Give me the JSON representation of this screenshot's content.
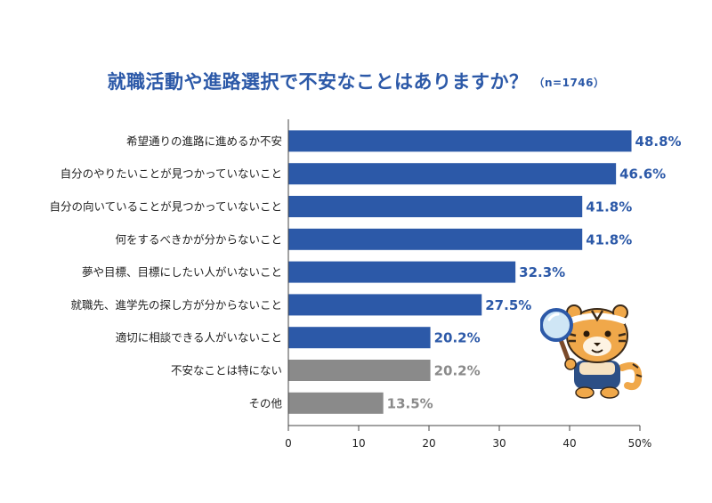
{
  "chart_data": {
    "type": "bar",
    "orientation": "horizontal",
    "title": "就職活動や進路選択で不安なことはありますか？",
    "subtitle": "（n=1746）",
    "categories": [
      "希望通りの進路に進めるか不安",
      "自分のやりたいことが見つかっていないこと",
      "自分の向いていることが見つかっていないこと",
      "何をするべきかが分からないこと",
      "夢や目標、目標にしたい人がいないこと",
      "就職先、進学先の探し方が分からないこと",
      "適切に相談できる人がいないこと",
      "不安なことは特にない",
      "その他"
    ],
    "values": [
      48.8,
      46.6,
      41.8,
      41.8,
      32.3,
      27.5,
      20.2,
      20.2,
      13.5
    ],
    "value_labels": [
      "48.8%",
      "46.6%",
      "41.8%",
      "41.8%",
      "32.3%",
      "27.5%",
      "20.2%",
      "20.2%",
      "13.5%"
    ],
    "bar_groups": [
      "blue",
      "blue",
      "blue",
      "blue",
      "blue",
      "blue",
      "blue",
      "gray",
      "gray"
    ],
    "colors": {
      "blue": "#2c59a8",
      "gray": "#8a8a8a",
      "title": "#2c59a8"
    },
    "xlim": [
      0,
      50
    ],
    "xticks": [
      0,
      10,
      20,
      30,
      40,
      50
    ],
    "xtick_labels": [
      "0",
      "10",
      "20",
      "30",
      "40",
      "50%"
    ],
    "grid": false,
    "legend": "none"
  },
  "mascot": {
    "icon": "tiger-mascot-with-magnifying-glass"
  }
}
